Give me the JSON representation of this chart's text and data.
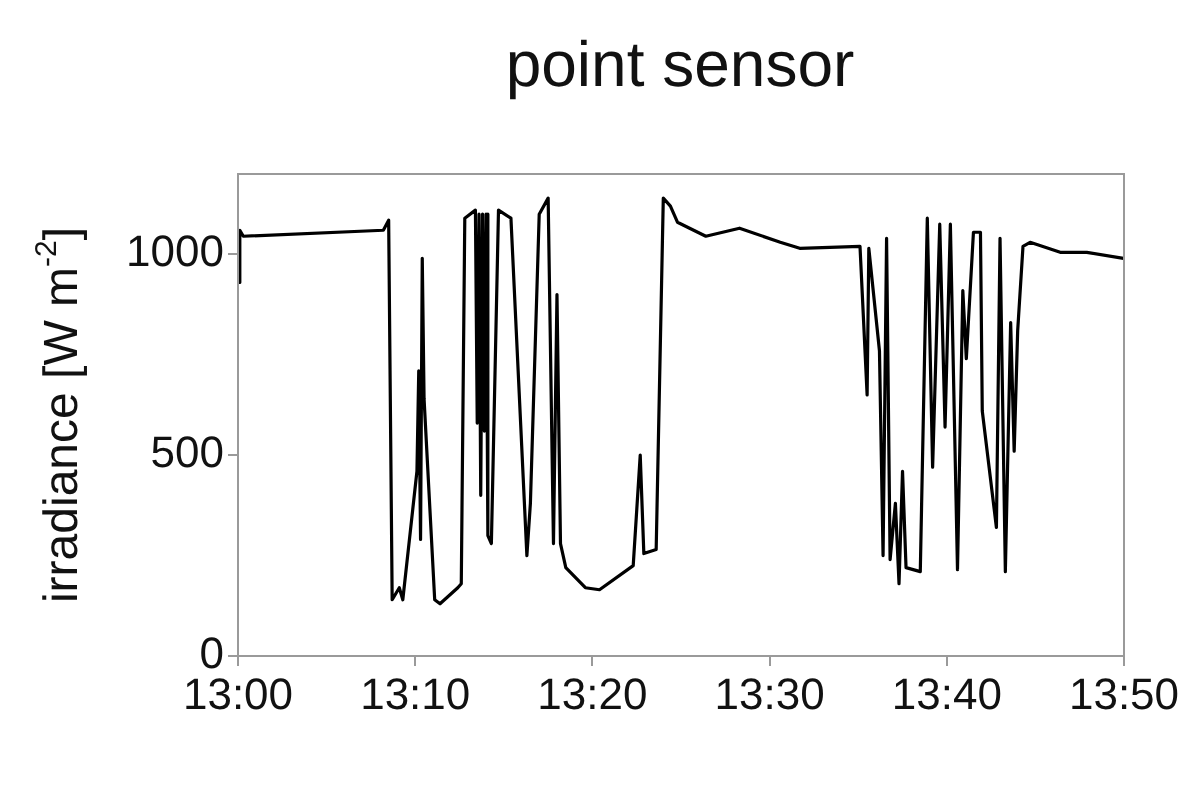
{
  "chart_data": {
    "type": "line",
    "title": "point sensor",
    "ylabel": "irradiance [W m$^{-2}$]",
    "color": "#000000",
    "marker": "none",
    "grid": false,
    "x": [
      13.0,
      13.0017,
      13.005,
      13.1367,
      13.1417,
      13.145,
      13.1517,
      13.155,
      13.1683,
      13.17,
      13.1717,
      13.1733,
      13.175,
      13.185,
      13.19,
      13.2067,
      13.21,
      13.2133,
      13.2233,
      13.225,
      13.2267,
      13.2283,
      13.23,
      13.2317,
      13.2333,
      13.235,
      13.2383,
      13.245,
      13.2567,
      13.2717,
      13.275,
      13.2833,
      13.2917,
      13.2967,
      13.3,
      13.3033,
      13.3083,
      13.3267,
      13.34,
      13.3717,
      13.3783,
      13.3817,
      13.3933,
      13.4,
      13.4067,
      13.4133,
      13.44,
      13.4717,
      13.51,
      13.5283,
      13.585,
      13.5917,
      13.5933,
      13.6033,
      13.6067,
      13.61,
      13.6133,
      13.6183,
      13.6217,
      13.625,
      13.6283,
      13.6417,
      13.6483,
      13.6533,
      13.66,
      13.665,
      13.67,
      13.6767,
      13.6817,
      13.685,
      13.6917,
      13.6983,
      13.7,
      13.7133,
      13.7167,
      13.7217,
      13.7267,
      13.73,
      13.7333,
      13.7383,
      13.745,
      13.7733,
      13.7983,
      13.8328
    ],
    "values": [
      930,
      1060,
      1045,
      1060,
      1085,
      140,
      170,
      140,
      460,
      710,
      290,
      990,
      640,
      140,
      130,
      170,
      180,
      1090,
      1110,
      580,
      1100,
      400,
      1100,
      560,
      1100,
      300,
      280,
      1110,
      1090,
      250,
      380,
      1100,
      1140,
      280,
      900,
      280,
      220,
      170,
      165,
      225,
      500,
      255,
      265,
      1140,
      1120,
      1080,
      1045,
      1065,
      1030,
      1015,
      1020,
      650,
      1015,
      760,
      250,
      1040,
      240,
      380,
      180,
      460,
      220,
      210,
      1090,
      470,
      1075,
      570,
      1075,
      215,
      910,
      740,
      1055,
      1055,
      610,
      320,
      1040,
      210,
      830,
      510,
      810,
      1020,
      1030,
      1005,
      1005,
      990
    ],
    "xlim": [
      13.0,
      13.8333
    ],
    "ylim": [
      0,
      1200
    ],
    "xticks": [
      {
        "value": 13.0,
        "label": "13:00"
      },
      {
        "value": 13.1667,
        "label": "13:10"
      },
      {
        "value": 13.3333,
        "label": "13:20"
      },
      {
        "value": 13.5,
        "label": "13:30"
      },
      {
        "value": 13.6667,
        "label": "13:40"
      },
      {
        "value": 13.8333,
        "label": "13:50"
      }
    ],
    "yticks": [
      0,
      500,
      1000
    ]
  }
}
